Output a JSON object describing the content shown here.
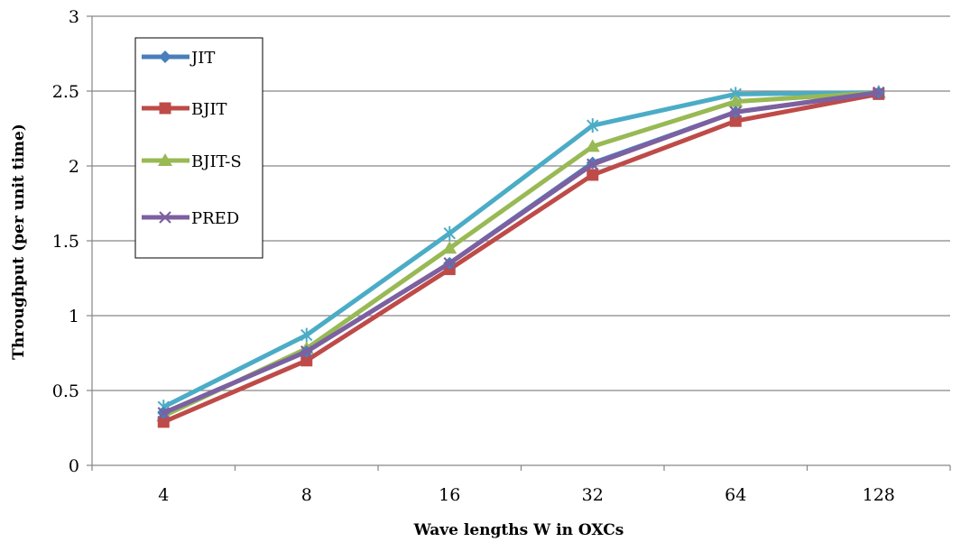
{
  "chart_data": {
    "type": "line",
    "title": "",
    "xlabel": "Wave lengths W in OXCs",
    "ylabel": "Throughput (per unit time)",
    "categories": [
      "4",
      "8",
      "16",
      "32",
      "64",
      "128"
    ],
    "ylim": [
      0,
      3
    ],
    "yticks": [
      "0",
      "0.5",
      "1",
      "1.5",
      "2",
      "2.5",
      "3"
    ],
    "grid": true,
    "legend_position": "top-left",
    "series": [
      {
        "name": "JIT",
        "color": "#4a7ebb",
        "marker": "diamond",
        "values": [
          0.35,
          0.76,
          1.35,
          2.02,
          2.36,
          2.49
        ]
      },
      {
        "name": "BJIT",
        "color": "#be4b48",
        "marker": "square",
        "values": [
          0.29,
          0.7,
          1.31,
          1.94,
          2.3,
          2.48
        ]
      },
      {
        "name": "BJIT-S",
        "color": "#98b954",
        "marker": "triangle",
        "values": [
          0.33,
          0.78,
          1.45,
          2.13,
          2.43,
          2.49
        ]
      },
      {
        "name": "PRED",
        "color": "#7d60a0",
        "marker": "x",
        "values": [
          0.35,
          0.76,
          1.35,
          2.01,
          2.36,
          2.49
        ]
      },
      {
        "name": "",
        "color": "#4bacc6",
        "marker": "star",
        "values": [
          0.39,
          0.87,
          1.55,
          2.27,
          2.48,
          2.49
        ]
      }
    ]
  }
}
